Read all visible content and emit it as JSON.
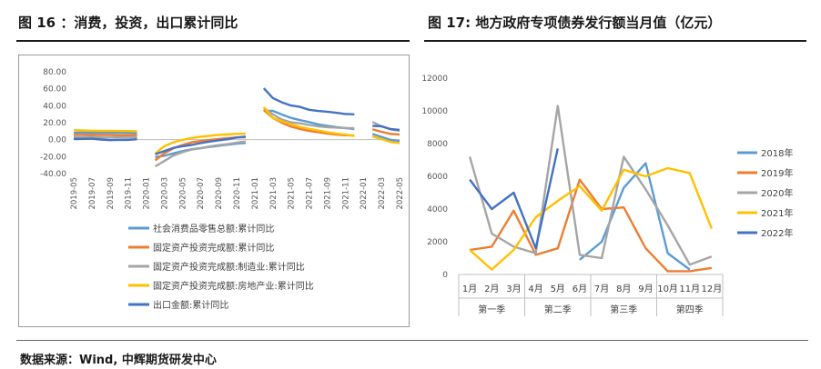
{
  "fig16": {
    "title": "图 16 ：消费，投资，出口累计同比"
  },
  "fig17": {
    "title": "图 17:   地方政府专项债券发行额当月值（亿元）"
  },
  "source": "数据来源：Wind, 中辉期货研发中心",
  "chart_data": [
    {
      "type": "line",
      "title": "",
      "ylim": [
        -40,
        80
      ],
      "yticks": [
        "80.00",
        "60.00",
        "40.00",
        "20.00",
        "0.00",
        "-20.00",
        "-40.00"
      ],
      "ytick_values": [
        80,
        60,
        40,
        20,
        0,
        -20,
        -40
      ],
      "x": [
        "2019-05",
        "2019-06",
        "2019-07",
        "2019-08",
        "2019-09",
        "2019-10",
        "2019-11",
        "2019-12",
        "2020-01",
        "2020-02",
        "2020-03",
        "2020-04",
        "2020-05",
        "2020-06",
        "2020-07",
        "2020-08",
        "2020-09",
        "2020-10",
        "2020-11",
        "2020-12",
        "2021-01",
        "2021-02",
        "2021-03",
        "2021-04",
        "2021-05",
        "2021-06",
        "2021-07",
        "2021-08",
        "2021-09",
        "2021-10",
        "2021-11",
        "2021-12",
        "2022-01",
        "2022-02",
        "2022-03",
        "2022-04",
        "2022-05"
      ],
      "xtick_labels": [
        "2019-05",
        "2019-07",
        "2019-09",
        "2019-11",
        "2020-01",
        "2020-03",
        "2020-05",
        "2020-07",
        "2020-09",
        "2020-11",
        "2021-01",
        "2021-03",
        "2021-05",
        "2021-07",
        "2021-09",
        "2021-11",
        "2022-01",
        "2022-03",
        "2022-05"
      ],
      "legend_position": "bottom",
      "series": [
        {
          "name": "社会消费品零售总额:累计同比",
          "color": "#5b9bd5",
          "values": [
            8.1,
            8.4,
            8.3,
            8.2,
            8.2,
            8.1,
            8.0,
            8.0,
            null,
            -20.5,
            -19.0,
            -16.2,
            -13.5,
            -11.4,
            -9.9,
            -8.6,
            -7.2,
            -5.9,
            -4.8,
            -3.9,
            null,
            33.8,
            33.9,
            29.6,
            25.7,
            23.0,
            20.7,
            18.1,
            16.4,
            14.9,
            13.7,
            12.5,
            null,
            6.7,
            3.3,
            -0.2,
            -1.5
          ]
        },
        {
          "name": "固定资产投资完成额:累计同比",
          "color": "#ed7d31",
          "values": [
            5.6,
            5.8,
            5.7,
            5.5,
            5.4,
            5.2,
            5.2,
            5.4,
            null,
            -24.5,
            -16.1,
            -10.3,
            -6.3,
            -3.1,
            -1.6,
            -0.3,
            0.8,
            1.8,
            2.6,
            2.9,
            null,
            35.0,
            25.6,
            19.9,
            15.4,
            12.6,
            10.3,
            8.9,
            7.3,
            6.1,
            5.2,
            4.9,
            null,
            12.2,
            9.3,
            6.8,
            6.2
          ]
        },
        {
          "name": "固定资产投资完成额:制造业:累计同比",
          "color": "#a5a5a5",
          "values": [
            2.7,
            3.0,
            3.3,
            2.6,
            2.5,
            2.6,
            2.5,
            3.1,
            null,
            -31.5,
            -25.2,
            -18.8,
            -14.8,
            -11.7,
            -10.2,
            -8.1,
            -6.5,
            -5.3,
            -3.5,
            -2.2,
            null,
            37.3,
            29.8,
            23.8,
            20.4,
            19.2,
            17.3,
            15.7,
            14.8,
            14.2,
            13.7,
            13.5,
            null,
            20.9,
            15.6,
            12.2,
            10.6
          ]
        },
        {
          "name": "固定资产投资完成额:房地产业:累计同比",
          "color": "#ffc000",
          "values": [
            11.2,
            10.9,
            10.6,
            10.5,
            10.5,
            10.3,
            10.2,
            9.9,
            null,
            -16.3,
            -7.7,
            -3.3,
            -0.3,
            1.9,
            3.4,
            4.6,
            5.6,
            6.3,
            6.8,
            7.0,
            null,
            38.3,
            25.6,
            21.6,
            18.3,
            15.0,
            12.7,
            10.9,
            8.8,
            7.2,
            6.0,
            4.4,
            null,
            3.7,
            0.7,
            -2.7,
            -4.0
          ]
        },
        {
          "name": "出口金额:累计同比",
          "color": "#4472c4",
          "values": [
            0.7,
            0.9,
            1.1,
            0.2,
            -0.6,
            -0.2,
            -0.3,
            0.5,
            null,
            -17.2,
            -13.4,
            -9.7,
            -7.7,
            -6.2,
            -4.1,
            -2.3,
            -0.8,
            0.5,
            2.5,
            3.6,
            null,
            60.6,
            49.0,
            44.0,
            40.2,
            38.6,
            35.2,
            33.8,
            33.0,
            31.7,
            30.3,
            29.9,
            null,
            16.3,
            15.8,
            12.5,
            11.4
          ]
        }
      ]
    },
    {
      "type": "line",
      "title": "",
      "ylim": [
        0,
        12000
      ],
      "yticks": [
        "12000",
        "10000",
        "8000",
        "6000",
        "4000",
        "2000",
        "0"
      ],
      "ytick_values": [
        12000,
        10000,
        8000,
        6000,
        4000,
        2000,
        0
      ],
      "categories": [
        "1月",
        "2月",
        "3月",
        "4月",
        "5月",
        "6月",
        "7月",
        "8月",
        "9月",
        "10月",
        "11月",
        "12月"
      ],
      "groups": [
        {
          "label": "第一季",
          "months": 3
        },
        {
          "label": "第二季",
          "months": 3
        },
        {
          "label": "第三季",
          "months": 3
        },
        {
          "label": "第四季",
          "months": 3
        }
      ],
      "legend_position": "right",
      "series": [
        {
          "name": "2018年",
          "color": "#5b9bd5",
          "values": [
            null,
            null,
            null,
            null,
            null,
            900,
            2000,
            5300,
            6800,
            1300,
            300,
            null
          ]
        },
        {
          "name": "2019年",
          "color": "#ed7d31",
          "values": [
            1500,
            1700,
            3900,
            1200,
            1600,
            5800,
            4000,
            4100,
            1600,
            200,
            200,
            400
          ]
        },
        {
          "name": "2020年",
          "color": "#a5a5a5",
          "values": [
            7200,
            2500,
            1700,
            1300,
            10300,
            1200,
            1000,
            7200,
            5200,
            3000,
            600,
            1100
          ]
        },
        {
          "name": "2021年",
          "color": "#ffc000",
          "values": [
            1500,
            300,
            1500,
            3500,
            4500,
            5400,
            3900,
            6400,
            6000,
            6500,
            6200,
            2800
          ]
        },
        {
          "name": "2022年",
          "color": "#4472c4",
          "values": [
            5800,
            4000,
            5000,
            1600,
            7700,
            null,
            null,
            null,
            null,
            null,
            null,
            null
          ]
        }
      ]
    }
  ]
}
